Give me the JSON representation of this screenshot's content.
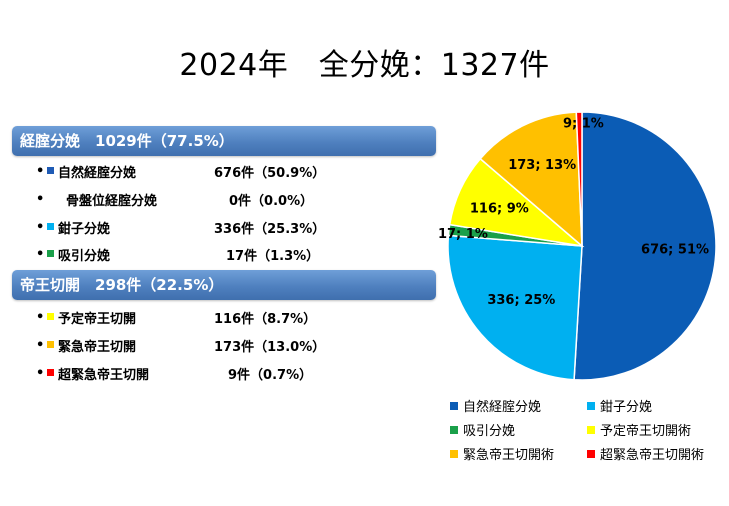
{
  "title": "2024年　全分娩：1327件",
  "groups": {
    "vaginal": {
      "header": "経腟分娩　1029件（77.5%）",
      "items": [
        {
          "label": "自然経腟分娩",
          "value": "676件（50.9%）",
          "color": "#1f5bb5"
        },
        {
          "label": "骨盤位経腟分娩",
          "value": "0件（0.0%）",
          "color": ""
        },
        {
          "label": "鉗子分娩",
          "value": "336件（25.3%）",
          "color": "#00b0f0"
        },
        {
          "label": "吸引分娩",
          "value": "17件（1.3%）",
          "color": "#1aa04a"
        }
      ]
    },
    "cesarean": {
      "header": "帝王切開　298件（22.5%）",
      "items": [
        {
          "label": "予定帝王切開",
          "value": "116件（8.7%）",
          "color": "#ffff00"
        },
        {
          "label": "緊急帝王切開",
          "value": "173件（13.0%）",
          "color": "#ffc000"
        },
        {
          "label": "超緊急帝王切開",
          "value": "9件（0.7%）",
          "color": "#ff0000"
        }
      ]
    }
  },
  "chart_data": {
    "type": "pie",
    "categories": [
      "自然経腟分娩",
      "鉗子分娩",
      "吸引分娩",
      "予定帝王切開術",
      "緊急帝王切開術",
      "超緊急帝王切開術"
    ],
    "values": [
      676,
      336,
      17,
      116,
      173,
      9
    ],
    "data_labels": [
      "676; 51%",
      "336; 25%",
      "17; 1%",
      "116; 9%",
      "173; 13%",
      "9; 1%"
    ],
    "colors": [
      "#0b5cb5",
      "#00b0f0",
      "#1aa04a",
      "#ffff00",
      "#ffc000",
      "#ff0000"
    ],
    "legend_position": "bottom"
  }
}
